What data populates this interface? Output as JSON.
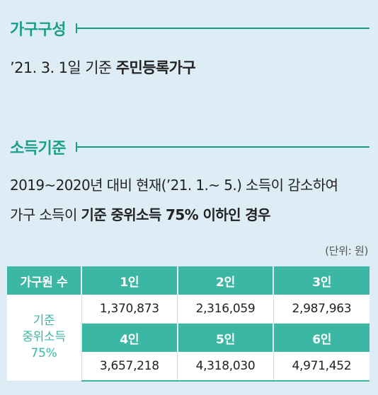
{
  "household": {
    "title": "가구구성",
    "basis_prefix": "’21. 3. 1일 기준 ",
    "basis_bold": "주민등록가구"
  },
  "income": {
    "title": "소득기준",
    "desc_line1": "2019~2020년 대비 현재(’21. 1.~ 5.) 소득이 감소하여",
    "desc_line2_prefix": "가구 소득이 ",
    "desc_line2_bold": "기준 중위소득 75% 이하인 경우",
    "unit": "(단위: 원)"
  },
  "table": {
    "header_label": "가구원 수",
    "row_label_lines": [
      "기준",
      "중위소득",
      "75%"
    ],
    "header_row1": [
      "1인",
      "2인",
      "3인"
    ],
    "values_row1": [
      "1,370,873",
      "2,316,059",
      "2,987,963"
    ],
    "header_row2": [
      "4인",
      "5인",
      "6인"
    ],
    "values_row2": [
      "3,657,218",
      "4,318,030",
      "4,971,452"
    ]
  },
  "colors": {
    "accent": "#1a9e8a",
    "header_bg": "#3cb7a4",
    "page_bg": "#deedf5"
  }
}
